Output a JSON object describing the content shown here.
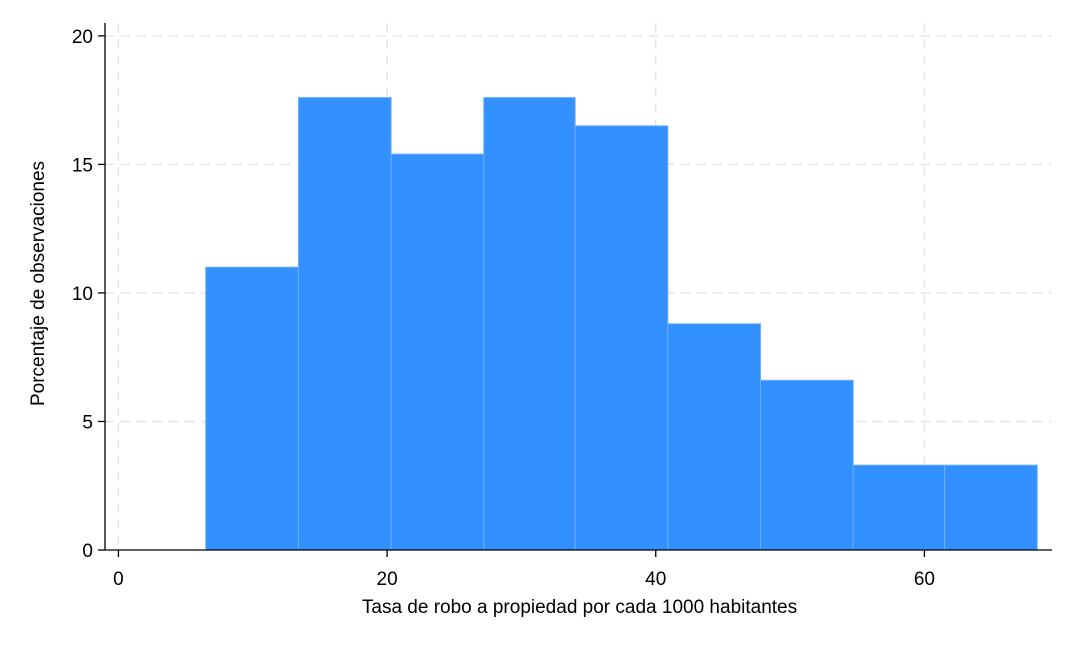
{
  "chart_data": {
    "type": "bar",
    "subtype": "histogram",
    "xlabel": "Tasa de robo a propiedad por cada 1000 habitantes",
    "ylabel": "Porcentaje de observaciones",
    "xlim": [
      -1,
      69.5
    ],
    "ylim": [
      0,
      20.5
    ],
    "xticks": [
      0,
      20,
      40,
      60
    ],
    "yticks": [
      0,
      5,
      10,
      15,
      20
    ],
    "xtick_labels": [
      "0",
      "20",
      "40",
      "60"
    ],
    "ytick_labels": [
      "0",
      "5",
      "10",
      "15",
      "20"
    ],
    "grid": true,
    "legend": "none",
    "bar_color": "#3391ff",
    "bar_edge_color": "#6aaeff",
    "bins": [
      {
        "x0": 6.5,
        "x1": 13.4,
        "value": 11.0
      },
      {
        "x0": 13.4,
        "x1": 20.3,
        "value": 17.6
      },
      {
        "x0": 20.3,
        "x1": 27.2,
        "value": 15.4
      },
      {
        "x0": 27.2,
        "x1": 34.0,
        "value": 17.6
      },
      {
        "x0": 34.0,
        "x1": 40.9,
        "value": 16.5
      },
      {
        "x0": 40.9,
        "x1": 47.8,
        "value": 8.8
      },
      {
        "x0": 47.8,
        "x1": 54.7,
        "value": 6.6
      },
      {
        "x0": 54.7,
        "x1": 61.5,
        "value": 3.3
      },
      {
        "x0": 61.5,
        "x1": 68.4,
        "value": 3.3
      }
    ]
  }
}
